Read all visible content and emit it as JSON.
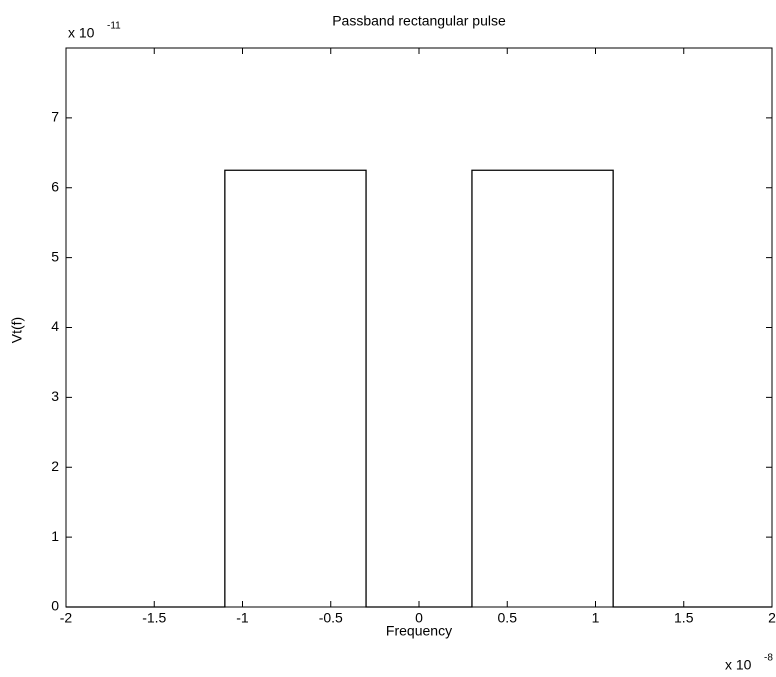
{
  "chart_data": {
    "type": "line",
    "title": "Passband rectangular pulse",
    "x_label": "Frequency",
    "y_label": "Vt(f)",
    "x_exponent": {
      "base": "x 10",
      "power": "-8"
    },
    "y_exponent": {
      "base": "x 10",
      "power": "-11"
    },
    "x": [
      -2,
      -1.1,
      -1.1,
      -0.3,
      -0.3,
      0.3,
      0.3,
      1.1,
      1.1,
      2
    ],
    "series": [
      {
        "color": "#000000",
        "values": [
          0,
          0,
          6.25,
          6.25,
          0,
          0,
          6.25,
          6.25,
          0,
          0
        ]
      }
    ],
    "xlim": [
      -2,
      2
    ],
    "xticks": [
      -2,
      -1.5,
      -1,
      -0.5,
      0,
      0.5,
      1,
      1.5,
      2
    ],
    "ylim": [
      0,
      8
    ],
    "yticks": [
      0,
      1,
      2,
      3,
      4,
      5,
      6,
      7
    ],
    "grid": false
  }
}
